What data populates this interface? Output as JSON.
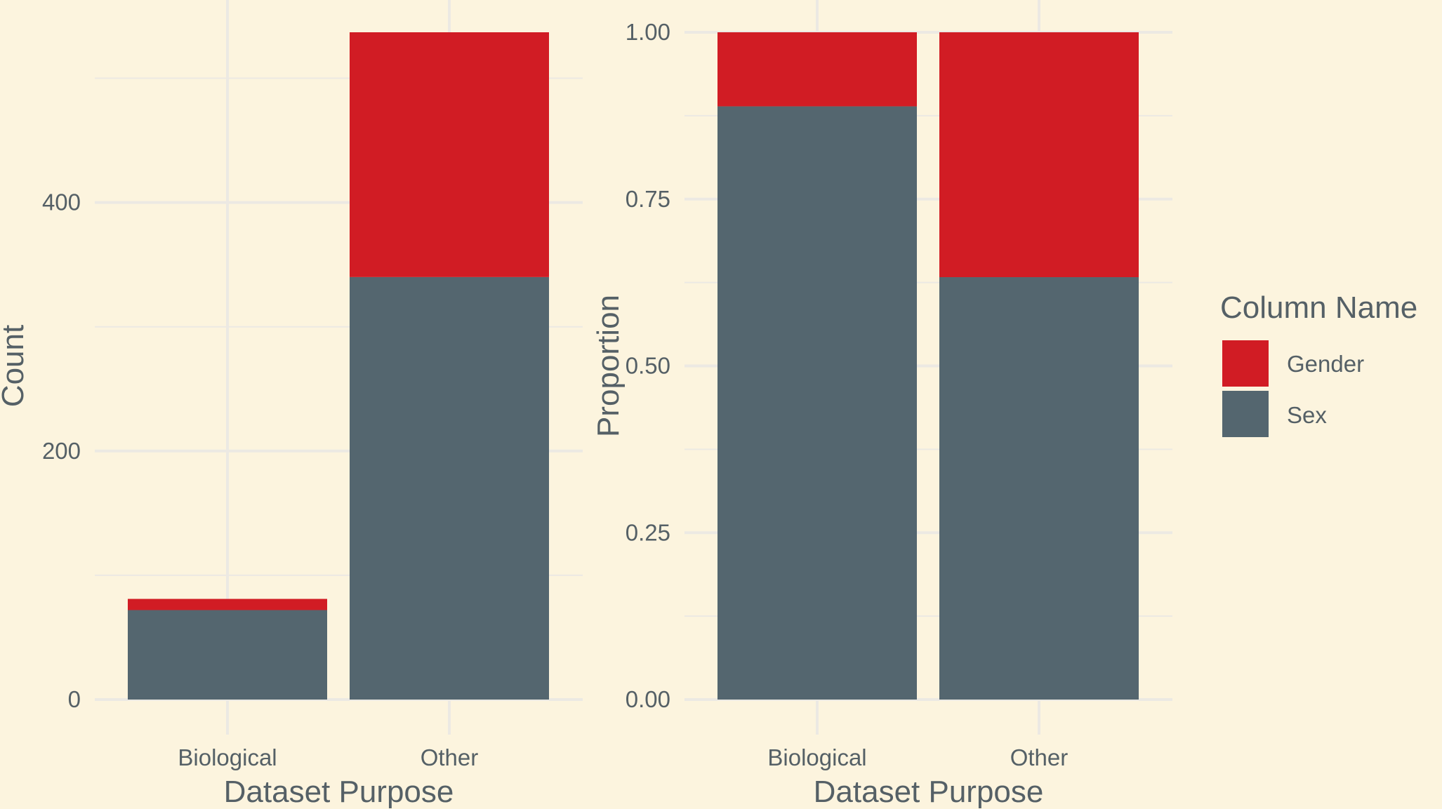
{
  "colors": {
    "background": "#fcf4de",
    "grid": "#ece9e3",
    "text": "#556066",
    "Gender": "#d11c24",
    "Sex": "#54666f"
  },
  "legend": {
    "title": "Column Name",
    "placement": "right",
    "items": [
      {
        "label": "Gender",
        "color": "#d11c24"
      },
      {
        "label": "Sex",
        "color": "#54666f"
      }
    ]
  },
  "chart_data": [
    {
      "type": "bar",
      "stacked": true,
      "categories": [
        "Biological",
        "Other"
      ],
      "series": [
        {
          "name": "Sex",
          "values": [
            72,
            340
          ]
        },
        {
          "name": "Gender",
          "values": [
            9,
            197
          ]
        }
      ],
      "xlabel": "Dataset Purpose",
      "ylabel": "Count",
      "ylim": [
        0,
        537
      ],
      "yticks": [
        0,
        200,
        400
      ],
      "ytick_labels": [
        "0",
        "200",
        "400"
      ],
      "grid": true
    },
    {
      "type": "bar",
      "stacked": true,
      "categories": [
        "Biological",
        "Other"
      ],
      "series": [
        {
          "name": "Sex",
          "values": [
            0.889,
            0.633
          ]
        },
        {
          "name": "Gender",
          "values": [
            0.111,
            0.367
          ]
        }
      ],
      "xlabel": "Dataset Purpose",
      "ylabel": "Proportion",
      "ylim": [
        0,
        1
      ],
      "yticks": [
        0,
        0.25,
        0.5,
        0.75,
        1
      ],
      "ytick_labels": [
        "0.00",
        "0.25",
        "0.50",
        "0.75",
        "1.00"
      ],
      "grid": true
    }
  ]
}
